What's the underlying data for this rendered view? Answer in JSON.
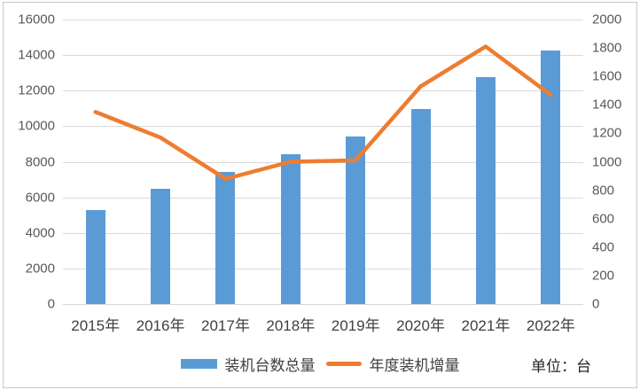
{
  "chart_data": {
    "type": "bar",
    "categories": [
      "2015年",
      "2016年",
      "2017年",
      "2018年",
      "2019年",
      "2020年",
      "2021年",
      "2022年"
    ],
    "series": [
      {
        "name": "装机台数总量",
        "type": "bar",
        "axis": "left",
        "color": "#5B9BD5",
        "values": [
          5300,
          6500,
          7450,
          8400,
          9400,
          10950,
          12750,
          14250
        ]
      },
      {
        "name": "年度装机增量",
        "type": "line",
        "axis": "right",
        "color": "#ED7D31",
        "values": [
          1350,
          1170,
          880,
          1000,
          1010,
          1530,
          1810,
          1470
        ]
      }
    ],
    "left_axis": {
      "min": 0,
      "max": 16000,
      "step": 2000,
      "ticks": [
        "0",
        "2000",
        "4000",
        "6000",
        "8000",
        "10000",
        "12000",
        "14000",
        "16000"
      ]
    },
    "right_axis": {
      "min": 0,
      "max": 2000,
      "step": 200,
      "ticks": [
        "0",
        "200",
        "400",
        "600",
        "800",
        "1000",
        "1200",
        "1400",
        "1600",
        "1800",
        "2000"
      ]
    },
    "grid": true,
    "legend_position": "bottom",
    "unit_label": "单位：台",
    "colors": {
      "bar": "#5B9BD5",
      "line": "#ED7D31",
      "gridline": "#D9D9D9",
      "axis_text": "#595959",
      "label_text": "#3F3F3F"
    }
  }
}
